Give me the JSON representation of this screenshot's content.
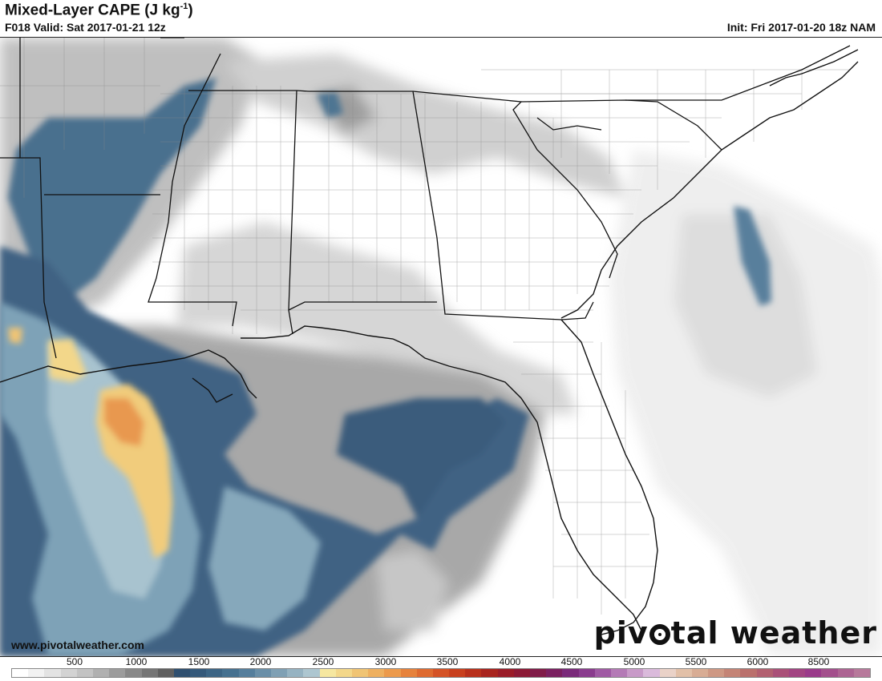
{
  "header": {
    "title_main": "Mixed-Layer CAPE (J kg",
    "title_exp": "-1",
    "title_close": ")",
    "valid": "F018 Valid: Sat 2017-01-21 12z",
    "init": "Init: Fri 2017-01-20 18z NAM"
  },
  "footer": {
    "website": "www.pivotalweather.com",
    "brand_left": "piv",
    "brand_right": "tal weather"
  },
  "colorbar": {
    "labels": [
      "500",
      "1000",
      "1500",
      "2000",
      "2500",
      "3000",
      "3500",
      "4000",
      "4500",
      "5000",
      "5500",
      "6000",
      "8500"
    ],
    "colors": [
      "#ffffff",
      "#f2f2f2",
      "#e3e3e3",
      "#d3d3d3",
      "#c3c3c3",
      "#b0b0b0",
      "#9c9c9c",
      "#888888",
      "#757575",
      "#5f5f5f",
      "#2f4f6f",
      "#35597a",
      "#3d6585",
      "#467190",
      "#557e9c",
      "#6a8fa8",
      "#7fa0b4",
      "#96b3c2",
      "#adc6d0",
      "#f6e7a0",
      "#f3d78a",
      "#f0c474",
      "#eeb060",
      "#ec9a4c",
      "#e6823c",
      "#de6a30",
      "#d45226",
      "#c8401e",
      "#b8301c",
      "#a8241e",
      "#9a1c28",
      "#8c1a36",
      "#801c48",
      "#7a2060",
      "#7a2a7a",
      "#8a3c8e",
      "#a05aa4",
      "#b47ab6",
      "#c89ac8",
      "#dabadb",
      "#ead2c8",
      "#e2c0a8",
      "#d8ac94",
      "#ce9884",
      "#c48476",
      "#ba706c",
      "#b26070",
      "#aa5078",
      "#a24482",
      "#9a3a8a",
      "#a34f8c",
      "#ad6493",
      "#b7799b"
    ]
  },
  "map_layers": [
    "cape-shading",
    "state-borders",
    "county-borders",
    "coastline"
  ]
}
